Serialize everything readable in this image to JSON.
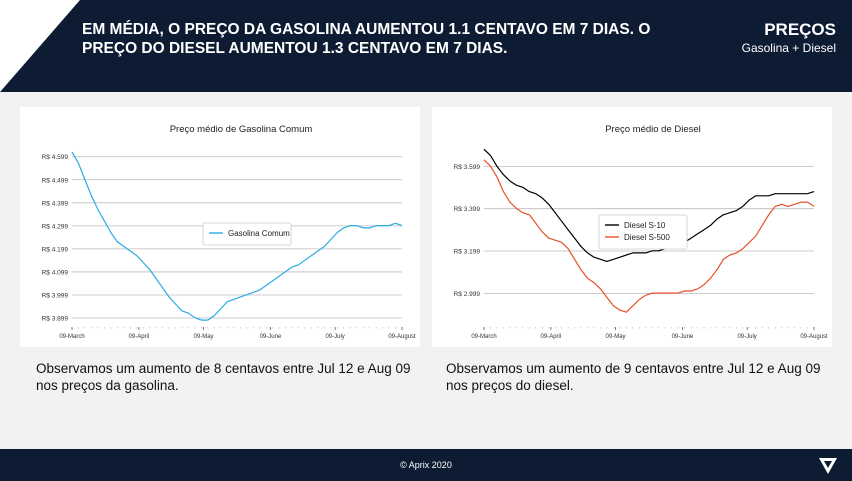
{
  "header": {
    "headline": "EM MÉDIA, O PREÇO DA GASOLINA AUMENTOU 1.1 CENTAVO EM 7 DIAS. O PREÇO DO DIESEL AUMENTOU 1.3 CENTAVO EM 7 DIAS.",
    "section_title": "PREÇOS",
    "section_subtitle": "Gasolina + Diesel"
  },
  "captions": {
    "left": "Observamos um aumento de 8 centavos entre Jul 12 e Aug 09 nos preços da gasolina.",
    "right": "Observamos um aumento de 9 centavos entre Jul 12 e Aug 09 nos preços do diesel."
  },
  "footer": {
    "copyright": "© Aprix 2020"
  },
  "colors": {
    "header_bg": "#0d1c33",
    "gasolina": "#29abe2",
    "diesel_s10": "#000000",
    "diesel_s500": "#e8502a",
    "grid": "#bbbbbb"
  },
  "icons": [
    "aprix-logo-icon"
  ],
  "chart_data": [
    {
      "type": "line",
      "title": "Preço médio de Gasolina Comum",
      "xlabel": "",
      "ylabel": "",
      "x_ticks": [
        "09-March",
        "09-April",
        "09-May",
        "09-June",
        "09-July",
        "09-August"
      ],
      "y_ticks": [
        "R$ 3.899",
        "R$ 3.999",
        "R$ 4.099",
        "R$ 4.199",
        "R$ 4.299",
        "R$ 4.399",
        "R$ 4.499",
        "R$ 4.599"
      ],
      "ylim": [
        3.86,
        4.65
      ],
      "grid": true,
      "legend_position": "center",
      "series": [
        {
          "name": "Gasolina Comum",
          "color": "#29abe2",
          "points": [
            [
              "2020-03-09",
              4.62
            ],
            [
              "2020-03-12",
              4.57
            ],
            [
              "2020-03-15",
              4.5
            ],
            [
              "2020-03-18",
              4.43
            ],
            [
              "2020-03-21",
              4.37
            ],
            [
              "2020-03-24",
              4.32
            ],
            [
              "2020-03-27",
              4.27
            ],
            [
              "2020-03-30",
              4.23
            ],
            [
              "2020-04-02",
              4.21
            ],
            [
              "2020-04-05",
              4.19
            ],
            [
              "2020-04-08",
              4.17
            ],
            [
              "2020-04-11",
              4.14
            ],
            [
              "2020-04-14",
              4.11
            ],
            [
              "2020-04-17",
              4.07
            ],
            [
              "2020-04-20",
              4.03
            ],
            [
              "2020-04-23",
              3.99
            ],
            [
              "2020-04-26",
              3.96
            ],
            [
              "2020-04-29",
              3.93
            ],
            [
              "2020-05-02",
              3.92
            ],
            [
              "2020-05-05",
              3.9
            ],
            [
              "2020-05-08",
              3.89
            ],
            [
              "2020-05-11",
              3.89
            ],
            [
              "2020-05-14",
              3.91
            ],
            [
              "2020-05-17",
              3.94
            ],
            [
              "2020-05-20",
              3.97
            ],
            [
              "2020-05-23",
              3.98
            ],
            [
              "2020-05-26",
              3.99
            ],
            [
              "2020-05-29",
              4.0
            ],
            [
              "2020-06-01",
              4.01
            ],
            [
              "2020-06-04",
              4.02
            ],
            [
              "2020-06-07",
              4.04
            ],
            [
              "2020-06-10",
              4.06
            ],
            [
              "2020-06-13",
              4.08
            ],
            [
              "2020-06-16",
              4.1
            ],
            [
              "2020-06-19",
              4.12
            ],
            [
              "2020-06-22",
              4.13
            ],
            [
              "2020-06-25",
              4.15
            ],
            [
              "2020-06-28",
              4.17
            ],
            [
              "2020-07-01",
              4.19
            ],
            [
              "2020-07-04",
              4.21
            ],
            [
              "2020-07-07",
              4.24
            ],
            [
              "2020-07-10",
              4.27
            ],
            [
              "2020-07-13",
              4.29
            ],
            [
              "2020-07-16",
              4.3
            ],
            [
              "2020-07-19",
              4.3
            ],
            [
              "2020-07-22",
              4.29
            ],
            [
              "2020-07-25",
              4.29
            ],
            [
              "2020-07-28",
              4.3
            ],
            [
              "2020-07-31",
              4.3
            ],
            [
              "2020-08-03",
              4.3
            ],
            [
              "2020-08-06",
              4.31
            ],
            [
              "2020-08-09",
              4.3
            ]
          ]
        }
      ]
    },
    {
      "type": "line",
      "title": "Preço médio de Diesel",
      "xlabel": "",
      "ylabel": "",
      "x_ticks": [
        "09-March",
        "09-April",
        "09-May",
        "09-June",
        "09-July",
        "09-August"
      ],
      "y_ticks": [
        "R$ 2.999",
        "R$ 3.199",
        "R$ 3.399",
        "R$ 3.599"
      ],
      "ylim": [
        2.84,
        3.7
      ],
      "grid": true,
      "legend_position": "center",
      "series": [
        {
          "name": "Diesel S-10",
          "color": "#000000",
          "points": [
            [
              "2020-03-09",
              3.68
            ],
            [
              "2020-03-12",
              3.65
            ],
            [
              "2020-03-15",
              3.6
            ],
            [
              "2020-03-18",
              3.56
            ],
            [
              "2020-03-21",
              3.53
            ],
            [
              "2020-03-24",
              3.51
            ],
            [
              "2020-03-27",
              3.5
            ],
            [
              "2020-03-30",
              3.48
            ],
            [
              "2020-04-02",
              3.47
            ],
            [
              "2020-04-05",
              3.45
            ],
            [
              "2020-04-08",
              3.42
            ],
            [
              "2020-04-11",
              3.38
            ],
            [
              "2020-04-14",
              3.34
            ],
            [
              "2020-04-17",
              3.3
            ],
            [
              "2020-04-20",
              3.26
            ],
            [
              "2020-04-23",
              3.22
            ],
            [
              "2020-04-26",
              3.19
            ],
            [
              "2020-04-29",
              3.17
            ],
            [
              "2020-05-02",
              3.16
            ],
            [
              "2020-05-05",
              3.15
            ],
            [
              "2020-05-08",
              3.16
            ],
            [
              "2020-05-11",
              3.17
            ],
            [
              "2020-05-14",
              3.18
            ],
            [
              "2020-05-17",
              3.19
            ],
            [
              "2020-05-20",
              3.19
            ],
            [
              "2020-05-23",
              3.19
            ],
            [
              "2020-05-26",
              3.2
            ],
            [
              "2020-05-29",
              3.2
            ],
            [
              "2020-06-01",
              3.21
            ],
            [
              "2020-06-04",
              3.22
            ],
            [
              "2020-06-07",
              3.23
            ],
            [
              "2020-06-10",
              3.24
            ],
            [
              "2020-06-13",
              3.26
            ],
            [
              "2020-06-16",
              3.28
            ],
            [
              "2020-06-19",
              3.3
            ],
            [
              "2020-06-22",
              3.32
            ],
            [
              "2020-06-25",
              3.35
            ],
            [
              "2020-06-28",
              3.37
            ],
            [
              "2020-07-01",
              3.38
            ],
            [
              "2020-07-04",
              3.39
            ],
            [
              "2020-07-07",
              3.41
            ],
            [
              "2020-07-10",
              3.44
            ],
            [
              "2020-07-13",
              3.46
            ],
            [
              "2020-07-16",
              3.46
            ],
            [
              "2020-07-19",
              3.46
            ],
            [
              "2020-07-22",
              3.47
            ],
            [
              "2020-07-25",
              3.47
            ],
            [
              "2020-07-28",
              3.47
            ],
            [
              "2020-07-31",
              3.47
            ],
            [
              "2020-08-03",
              3.47
            ],
            [
              "2020-08-06",
              3.47
            ],
            [
              "2020-08-09",
              3.48
            ]
          ]
        },
        {
          "name": "Diesel S-500",
          "color": "#e8502a",
          "points": [
            [
              "2020-03-09",
              3.63
            ],
            [
              "2020-03-12",
              3.6
            ],
            [
              "2020-03-15",
              3.55
            ],
            [
              "2020-03-18",
              3.48
            ],
            [
              "2020-03-21",
              3.43
            ],
            [
              "2020-03-24",
              3.4
            ],
            [
              "2020-03-27",
              3.38
            ],
            [
              "2020-03-30",
              3.37
            ],
            [
              "2020-04-02",
              3.33
            ],
            [
              "2020-04-05",
              3.29
            ],
            [
              "2020-04-08",
              3.26
            ],
            [
              "2020-04-11",
              3.25
            ],
            [
              "2020-04-14",
              3.24
            ],
            [
              "2020-04-17",
              3.21
            ],
            [
              "2020-04-20",
              3.16
            ],
            [
              "2020-04-23",
              3.11
            ],
            [
              "2020-04-26",
              3.07
            ],
            [
              "2020-04-29",
              3.05
            ],
            [
              "2020-05-02",
              3.02
            ],
            [
              "2020-05-05",
              2.98
            ],
            [
              "2020-05-08",
              2.94
            ],
            [
              "2020-05-11",
              2.92
            ],
            [
              "2020-05-14",
              2.91
            ],
            [
              "2020-05-17",
              2.94
            ],
            [
              "2020-05-20",
              2.97
            ],
            [
              "2020-05-23",
              2.99
            ],
            [
              "2020-05-26",
              3.0
            ],
            [
              "2020-05-29",
              3.0
            ],
            [
              "2020-06-01",
              3.0
            ],
            [
              "2020-06-04",
              3.0
            ],
            [
              "2020-06-07",
              3.0
            ],
            [
              "2020-06-10",
              3.01
            ],
            [
              "2020-06-13",
              3.01
            ],
            [
              "2020-06-16",
              3.02
            ],
            [
              "2020-06-19",
              3.04
            ],
            [
              "2020-06-22",
              3.07
            ],
            [
              "2020-06-25",
              3.11
            ],
            [
              "2020-06-28",
              3.16
            ],
            [
              "2020-07-01",
              3.18
            ],
            [
              "2020-07-04",
              3.19
            ],
            [
              "2020-07-07",
              3.21
            ],
            [
              "2020-07-10",
              3.24
            ],
            [
              "2020-07-13",
              3.27
            ],
            [
              "2020-07-16",
              3.32
            ],
            [
              "2020-07-19",
              3.37
            ],
            [
              "2020-07-22",
              3.41
            ],
            [
              "2020-07-25",
              3.42
            ],
            [
              "2020-07-28",
              3.41
            ],
            [
              "2020-07-31",
              3.42
            ],
            [
              "2020-08-03",
              3.43
            ],
            [
              "2020-08-06",
              3.43
            ],
            [
              "2020-08-09",
              3.41
            ]
          ]
        }
      ]
    }
  ]
}
